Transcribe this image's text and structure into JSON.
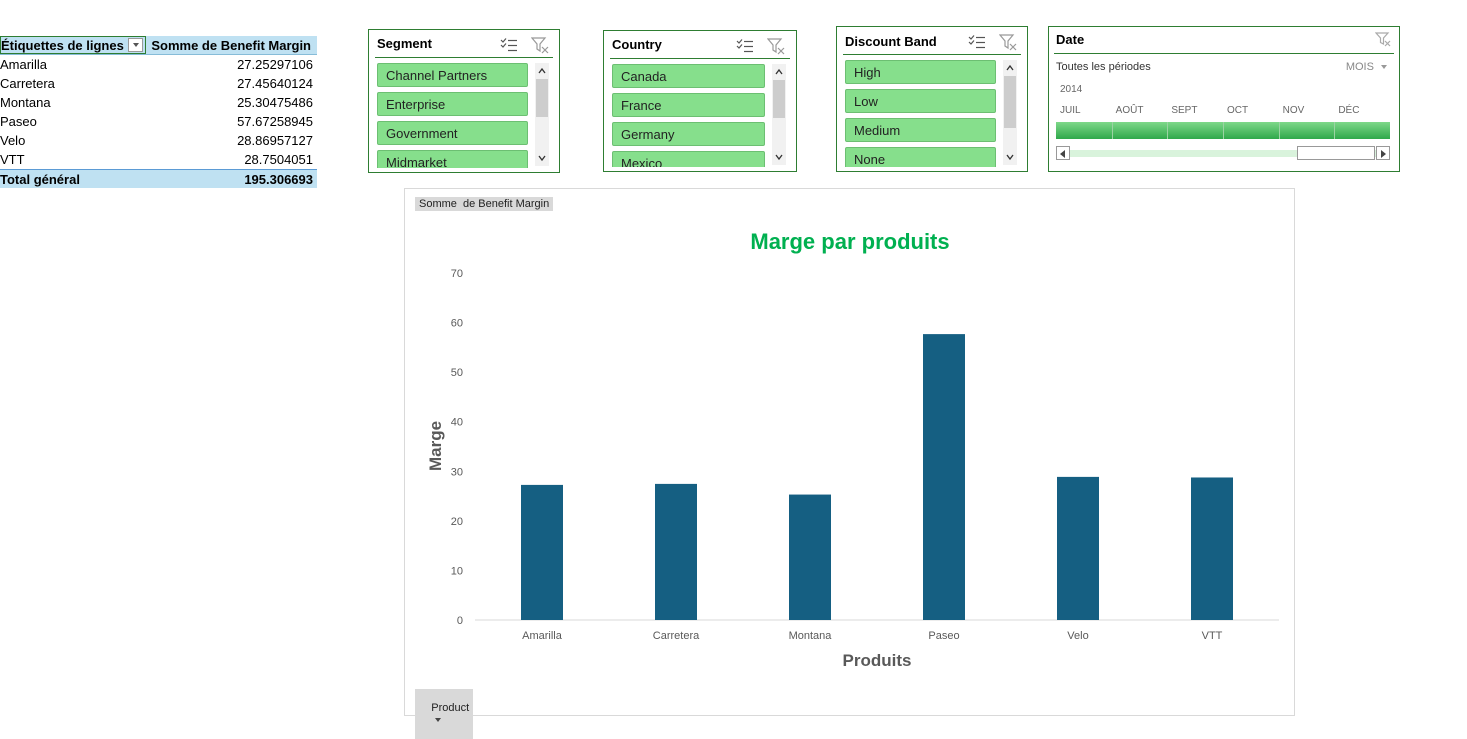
{
  "pivot": {
    "header": {
      "row_label": "Étiquettes de lignes",
      "value_label": "Somme de Benefit Margin"
    },
    "rows": [
      {
        "label": "Amarilla",
        "value": "27.25297106"
      },
      {
        "label": "Carretera",
        "value": "27.45640124"
      },
      {
        "label": "Montana",
        "value": "25.30475486"
      },
      {
        "label": "Paseo",
        "value": "57.67258945"
      },
      {
        "label": "Velo",
        "value": "28.86957127"
      },
      {
        "label": "VTT",
        "value": "28.7504051"
      }
    ],
    "total": {
      "label": "Total général",
      "value": "195.306693"
    }
  },
  "slicers": {
    "segment": {
      "title": "Segment",
      "items": [
        "Channel Partners",
        "Enterprise",
        "Government",
        "Midmarket"
      ]
    },
    "country": {
      "title": "Country",
      "items": [
        "Canada",
        "France",
        "Germany",
        "Mexico"
      ]
    },
    "discount": {
      "title": "Discount Band",
      "items": [
        "High",
        "Low",
        "Medium",
        "None"
      ]
    }
  },
  "timeline": {
    "title": "Date",
    "period": "Toutes les périodes",
    "mode": "MOIS",
    "year": "2014",
    "months": [
      "JUIL",
      "AOÛT",
      "SEPT",
      "OCT",
      "NOV",
      "DÉC"
    ]
  },
  "chart": {
    "value_field_button": "Somme  de Benefit Margin",
    "axis_field_button": "Product"
  },
  "colors": {
    "bar": "#155f82",
    "title": "#00b050",
    "slicer_item": "#86df8c",
    "border": "#2e7d32"
  },
  "chart_data": {
    "type": "bar",
    "title": "Marge par produits",
    "xlabel": "Produits",
    "ylabel": "Marge",
    "categories": [
      "Amarilla",
      "Carretera",
      "Montana",
      "Paseo",
      "Velo",
      "VTT"
    ],
    "values": [
      27.25297106,
      27.45640124,
      25.30475486,
      57.67258945,
      28.86957127,
      28.7504051
    ],
    "ylim": [
      0,
      70
    ],
    "yticks": [
      0,
      10,
      20,
      30,
      40,
      50,
      60,
      70
    ],
    "grid": false,
    "legend": "none"
  }
}
